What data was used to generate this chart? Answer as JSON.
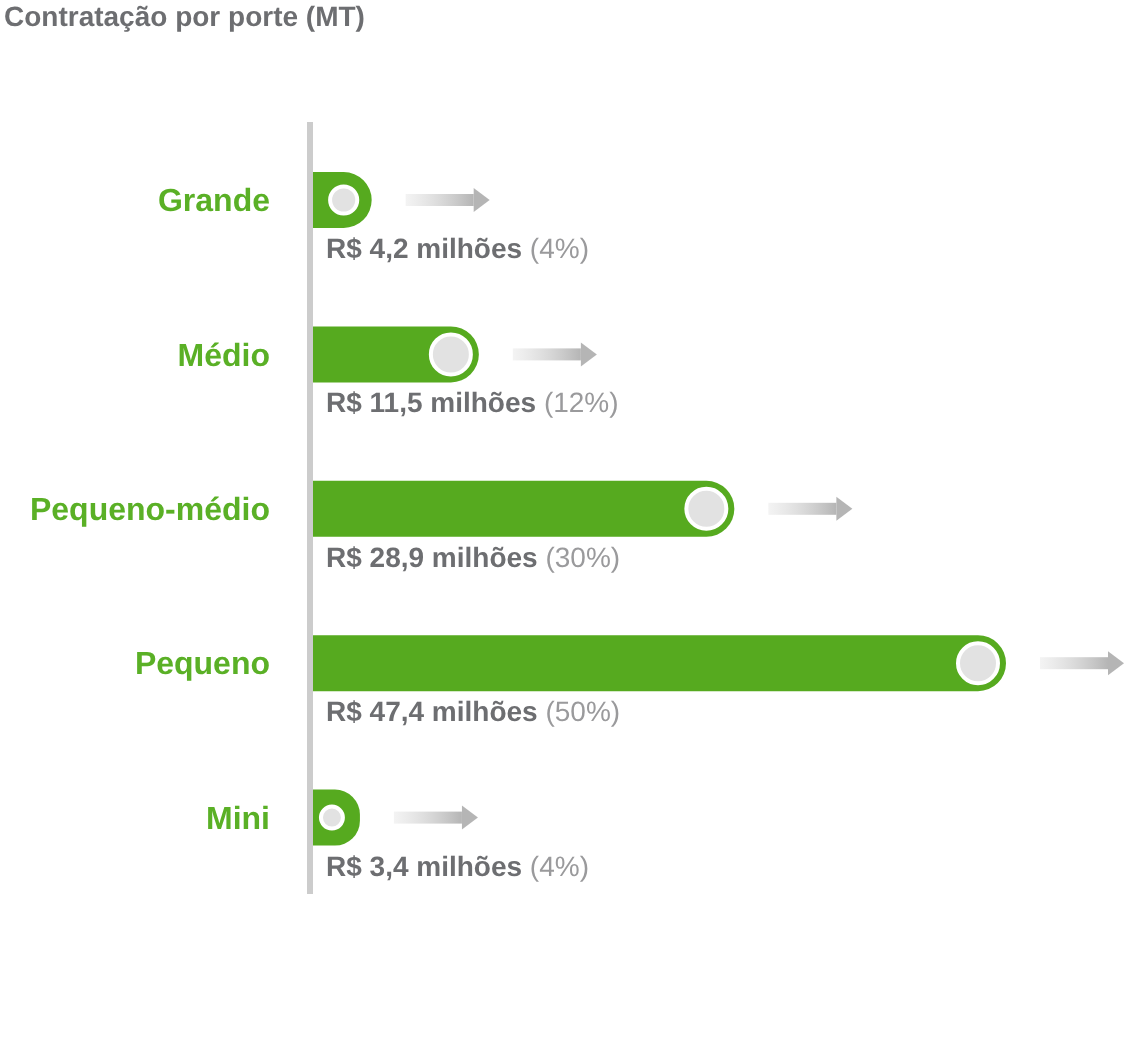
{
  "chart_data": {
    "type": "bar",
    "orientation": "horizontal",
    "title": "Contratação por porte (MT)",
    "categories": [
      "Grande",
      "Médio",
      "Pequeno-médio",
      "Pequeno",
      "Mini"
    ],
    "values": [
      4.2,
      11.5,
      28.9,
      47.4,
      3.4
    ],
    "color": "#56aa1f",
    "value_labels": [
      "R$ 4,2 milhões (4%)",
      "R$ 11,5 milhões (12%)",
      "R$ 28,9 milhões (30%)",
      "R$ 47,4 milhões (50%)",
      "R$ 3,4 milhões (4%)"
    ],
    "tick_labels": "y"
  }
}
